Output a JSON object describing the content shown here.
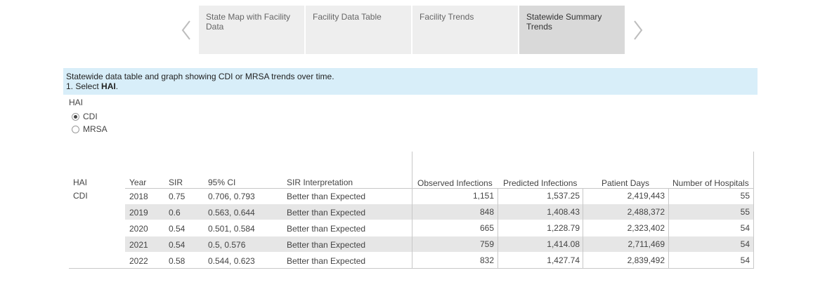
{
  "tabs": [
    {
      "label": "State Map with Facility Data"
    },
    {
      "label": "Facility Data Table"
    },
    {
      "label": "Facility Trends"
    },
    {
      "label": "Statewide Summary Trends"
    }
  ],
  "active_tab": "Statewide Summary Trends",
  "info": {
    "line1": "Statewide data table and graph showing CDI or MRSA trends over time.",
    "line2_prefix": "1. Select ",
    "line2_bold": "HAI",
    "line2_suffix": "."
  },
  "filter": {
    "title": "HAI",
    "options": [
      {
        "label": "CDI",
        "selected": true
      },
      {
        "label": "MRSA",
        "selected": false
      }
    ]
  },
  "table": {
    "headers": {
      "hai": "HAI",
      "year": "Year",
      "sir": "SIR",
      "ci": "95% CI",
      "interp": "SIR Interpretation",
      "observed": "Observed Infections",
      "predicted": "Predicted Infections",
      "days": "Patient Days",
      "hospitals": "Number of Hospitals"
    },
    "group": "CDI",
    "rows": [
      {
        "year": "2018",
        "sir": "0.75",
        "ci": "0.706, 0.793",
        "interp": "Better than Expected",
        "observed": "1,151",
        "predicted": "1,537.25",
        "days": "2,419,443",
        "hospitals": "55"
      },
      {
        "year": "2019",
        "sir": "0.6",
        "ci": "0.563, 0.644",
        "interp": "Better than Expected",
        "observed": "848",
        "predicted": "1,408.43",
        "days": "2,488,372",
        "hospitals": "55"
      },
      {
        "year": "2020",
        "sir": "0.54",
        "ci": "0.501, 0.584",
        "interp": "Better than Expected",
        "observed": "665",
        "predicted": "1,228.79",
        "days": "2,323,402",
        "hospitals": "54"
      },
      {
        "year": "2021",
        "sir": "0.54",
        "ci": "0.5, 0.576",
        "interp": "Better than Expected",
        "observed": "759",
        "predicted": "1,414.08",
        "days": "2,711,469",
        "hospitals": "54"
      },
      {
        "year": "2022",
        "sir": "0.58",
        "ci": "0.544, 0.623",
        "interp": "Better than Expected",
        "observed": "832",
        "predicted": "1,427.74",
        "days": "2,839,492",
        "hospitals": "54"
      }
    ]
  }
}
